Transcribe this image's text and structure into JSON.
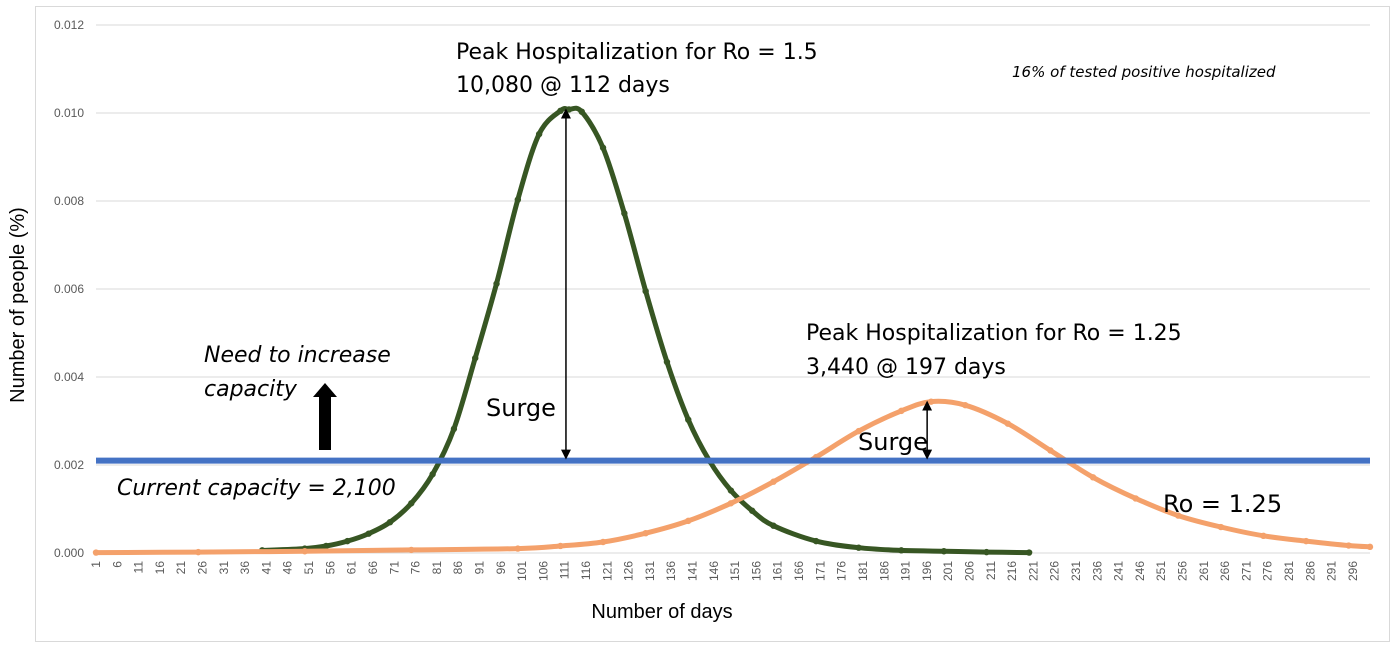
{
  "chart_data": {
    "type": "line",
    "title": "",
    "xlabel": "Number of days",
    "ylabel": "Number of people (%)",
    "xlim": [
      1,
      300
    ],
    "ylim": [
      0,
      0.012
    ],
    "y_ticks": [
      "0.000",
      "0.002",
      "0.004",
      "0.006",
      "0.008",
      "0.010",
      "0.012"
    ],
    "x_tick_start": 1,
    "x_tick_end": 296,
    "x_tick_step": 5,
    "grid": true,
    "series": [
      {
        "name": "",
        "color": "#375623",
        "marker": "circle",
        "x": [
          40,
          50,
          55,
          60,
          65,
          70,
          75,
          80,
          85,
          90,
          95,
          100,
          105,
          110,
          112,
          115,
          120,
          125,
          130,
          135,
          140,
          145,
          150,
          155,
          160,
          170,
          180,
          190,
          200,
          210,
          220
        ],
        "y": [
          6e-05,
          0.0001,
          0.00016,
          0.00027,
          0.00044,
          0.0007,
          0.00113,
          0.00179,
          0.00282,
          0.00443,
          0.00612,
          0.00803,
          0.00952,
          0.01005,
          0.01008,
          0.01003,
          0.00921,
          0.00772,
          0.00595,
          0.00434,
          0.00303,
          0.00209,
          0.00142,
          0.00096,
          0.00062,
          0.00027,
          0.00012,
          6e-05,
          4e-05,
          2e-05,
          1e-05
        ]
      },
      {
        "name": "Ro = 1.25",
        "color": "#f4a16b",
        "marker": "circle",
        "x": [
          1,
          25,
          50,
          75,
          100,
          110,
          120,
          130,
          140,
          150,
          160,
          170,
          180,
          190,
          197,
          205,
          215,
          225,
          235,
          245,
          255,
          265,
          275,
          285,
          295,
          300
        ],
        "y": [
          1e-05,
          2e-05,
          4e-05,
          7e-05,
          0.0001,
          0.00016,
          0.00025,
          0.00045,
          0.00073,
          0.00113,
          0.00162,
          0.00218,
          0.00277,
          0.00323,
          0.00344,
          0.00336,
          0.00294,
          0.00233,
          0.00172,
          0.00124,
          0.00085,
          0.00059,
          0.00039,
          0.00027,
          0.00017,
          0.00014
        ]
      },
      {
        "name": "",
        "color": "#4472c4",
        "marker": "none",
        "x": [
          1,
          300
        ],
        "y": [
          0.0021,
          0.0021
        ]
      }
    ],
    "annotations": {
      "peak1_line1": "Peak Hospitalization for Ro = 1.5",
      "peak1_line2": "10,080 @ 112 days",
      "peak2_line1": "Peak Hospitalization for Ro = 1.25",
      "peak2_line2": "3,440 @ 197 days",
      "note": "16% of tested positive hospitalized",
      "need_line1": "Need to increase",
      "need_line2": "capacity",
      "surge_label": "Surge",
      "current_capacity": "Current capacity = 2,100",
      "ro_label": "Ro = 1.25"
    }
  }
}
